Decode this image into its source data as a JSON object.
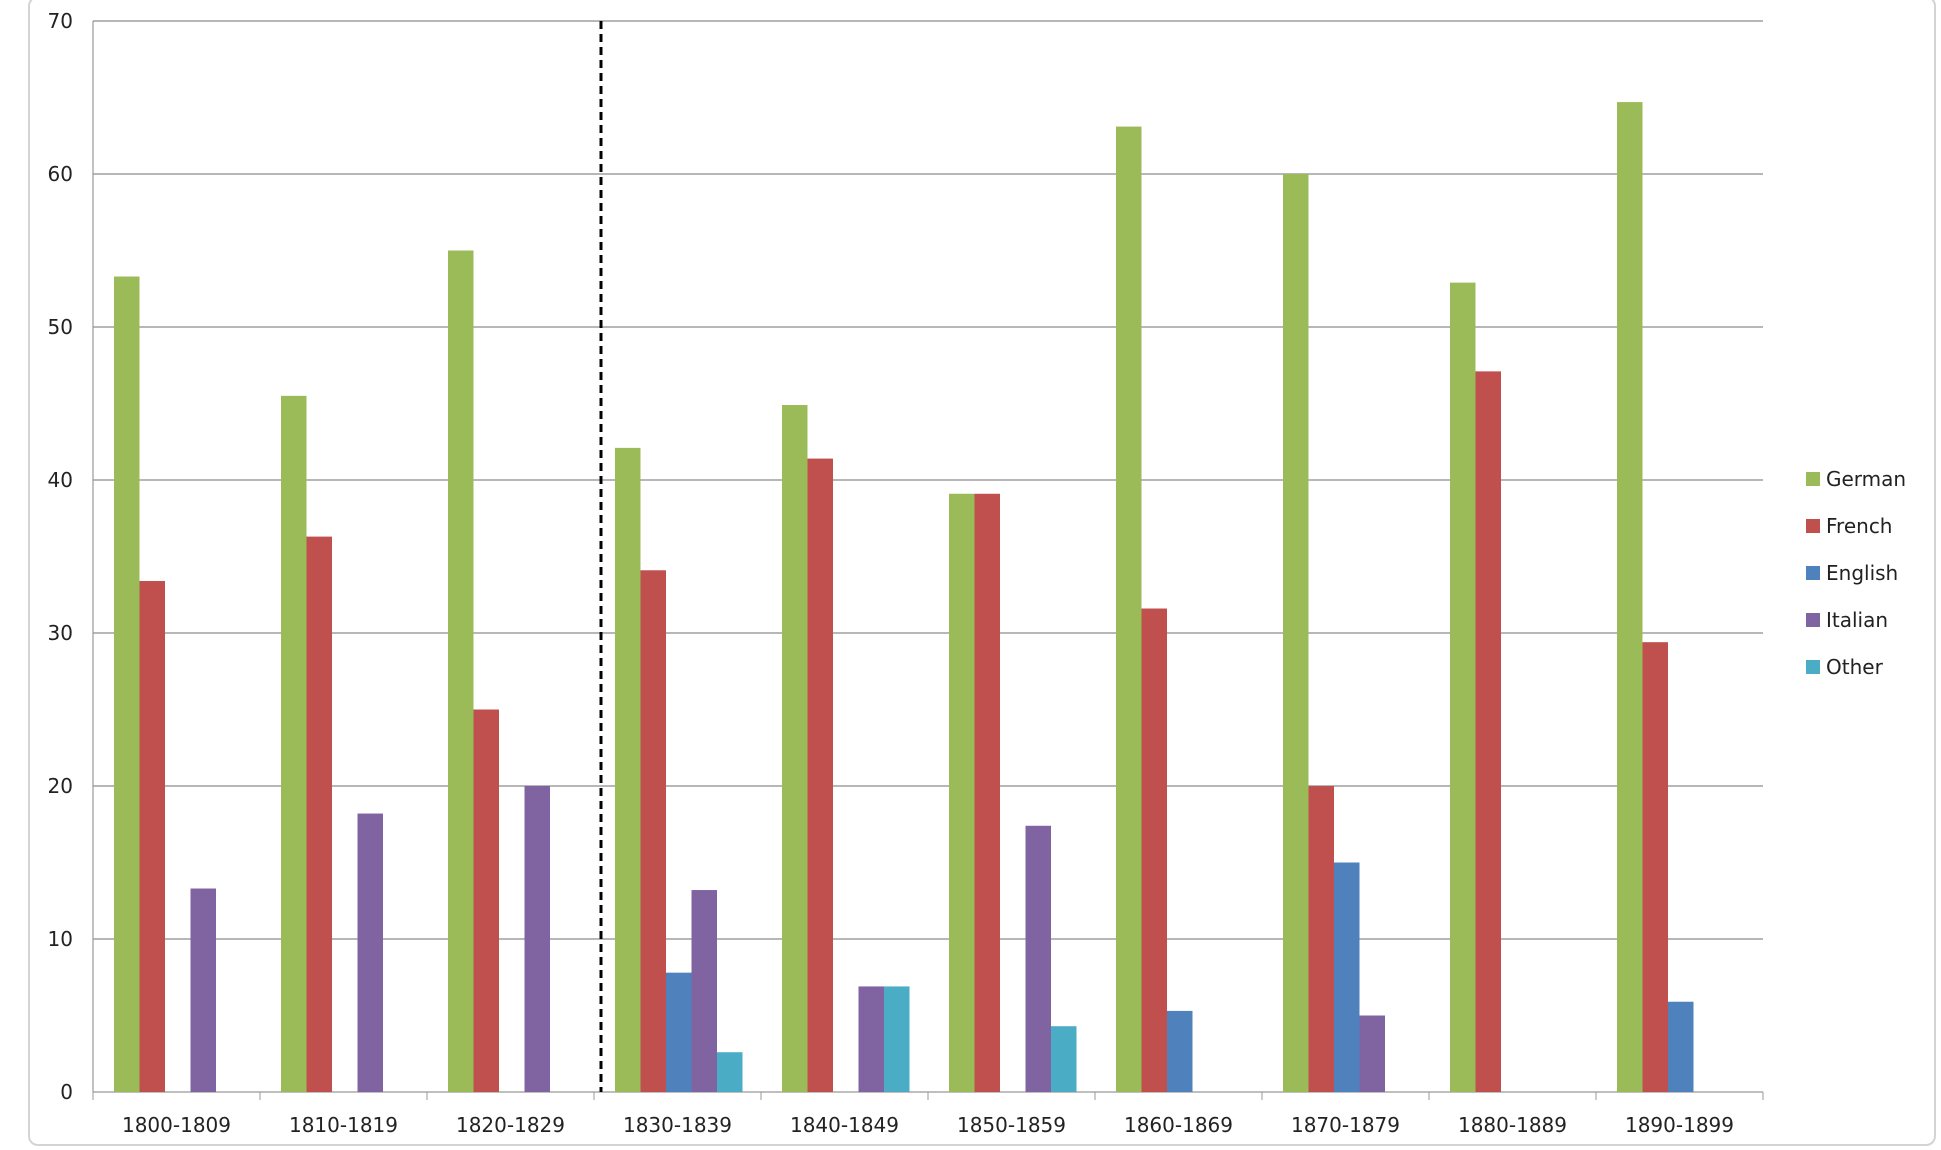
{
  "chart_data": {
    "type": "bar",
    "categories": [
      "1800-1809",
      "1810-1819",
      "1820-1829",
      "1830-1839",
      "1840-1849",
      "1850-1859",
      "1860-1869",
      "1870-1879",
      "1880-1889",
      "1890-1899"
    ],
    "series": [
      {
        "name": "German",
        "color": "#9bbb59",
        "values": [
          53.3,
          45.5,
          55,
          42.1,
          44.9,
          39.1,
          63.1,
          60,
          52.9,
          64.7
        ]
      },
      {
        "name": "French",
        "color": "#c0504d",
        "values": [
          33.4,
          36.3,
          25,
          34.1,
          41.4,
          39.1,
          31.6,
          20,
          47.1,
          29.4
        ]
      },
      {
        "name": "English",
        "color": "#4f81bd",
        "values": [
          0,
          0,
          0,
          7.8,
          0,
          0,
          5.3,
          15,
          0,
          5.9
        ]
      },
      {
        "name": "Italian",
        "color": "#8064a2",
        "values": [
          13.3,
          18.2,
          20,
          13.2,
          6.9,
          17.4,
          0,
          5,
          0,
          0
        ]
      },
      {
        "name": "Other",
        "color": "#4bacc6",
        "values": [
          0,
          0,
          0,
          2.6,
          6.9,
          4.3,
          0,
          0,
          0,
          0
        ]
      }
    ],
    "ylim": [
      0,
      70
    ],
    "yticks": [
      "0",
      "10",
      "20",
      "30",
      "40",
      "50",
      "60",
      "70"
    ],
    "grid": true,
    "legend_position": "right",
    "divider_after_category": "1820-1829"
  }
}
